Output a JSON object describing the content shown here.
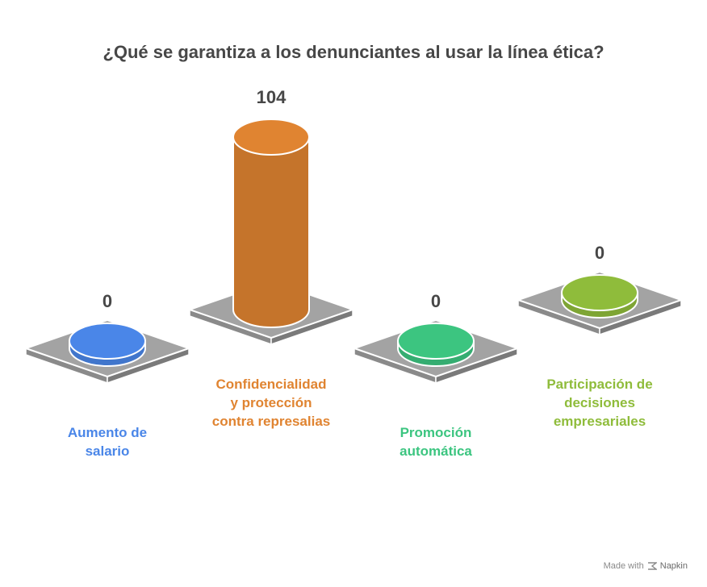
{
  "chart_data": {
    "type": "bar",
    "title": "¿Qué se garantiza a los denunciantes al usar la línea ética?",
    "categories": [
      "Aumento de salario",
      "Confidencialidad y protección contra represalias",
      "Promoción automática",
      "Participación de decisiones empresariales"
    ],
    "category_lines": [
      [
        "Aumento de",
        "salario"
      ],
      [
        "Confidencialidad",
        "y protección",
        "contra represalias"
      ],
      [
        "Promoción",
        "automática"
      ],
      [
        "Participación de",
        "decisiones",
        "empresariales"
      ]
    ],
    "values": [
      0,
      104,
      0,
      0
    ],
    "value_labels": [
      "0",
      "104",
      "0",
      "0"
    ],
    "colors": [
      "#4A86E8",
      "#E08431",
      "#3CC580",
      "#8FBC3B"
    ]
  },
  "watermark": {
    "made_with": "Made with",
    "brand": "Napkin"
  }
}
